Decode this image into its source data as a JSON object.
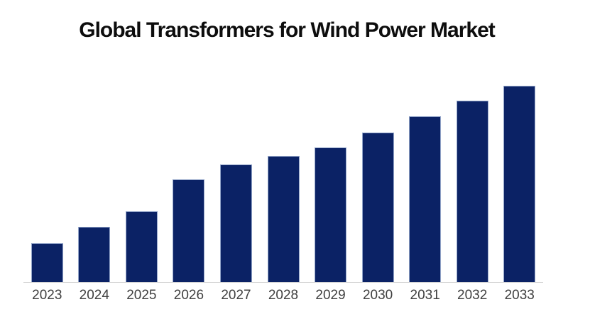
{
  "title": {
    "text": "Global Transformers for Wind Power Market"
  },
  "colors": {
    "background": "#ffffff",
    "bar_fill": "#0b2265",
    "bar_border": "#93a5c9",
    "axis_line": "#d9d9d9",
    "title_text": "#0d0d0d",
    "label_text": "#404040"
  },
  "chart_data": {
    "type": "bar",
    "title": "Global Transformers for Wind Power Market",
    "categories": [
      "2023",
      "2024",
      "2025",
      "2026",
      "2027",
      "2028",
      "2029",
      "2030",
      "2031",
      "2032",
      "2033"
    ],
    "values": [
      19.7,
      28.0,
      36.0,
      52.2,
      60.0,
      64.2,
      68.5,
      76.1,
      84.4,
      92.4,
      100
    ],
    "xlabel": "",
    "ylabel": "",
    "ylim": [
      0,
      105
    ],
    "grid": false,
    "legend": false,
    "y_axis_labels_shown": false,
    "value_scale_note": "no value axis shown; values are relative index, tallest bar (2033) = 100"
  }
}
